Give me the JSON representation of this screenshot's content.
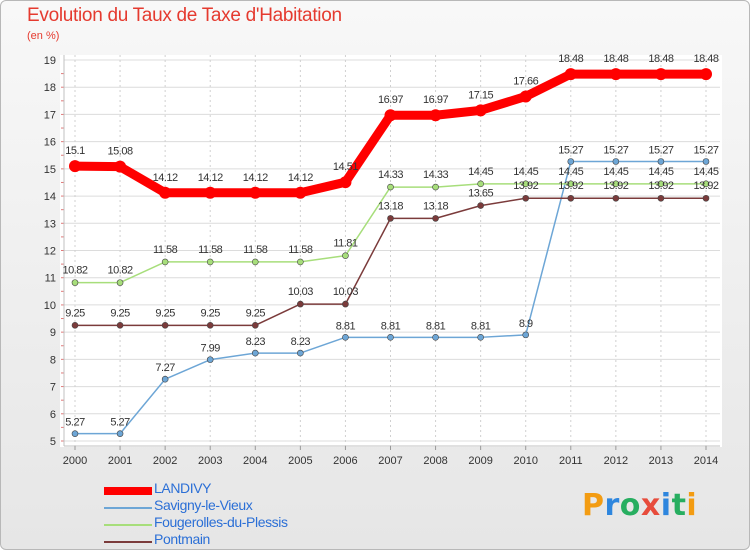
{
  "page": {
    "title": "Evolution du Taux de Taxe d'Habitation",
    "subtitle": "(en %)",
    "logo": {
      "text": "ProXiti",
      "letters": [
        "P",
        "r",
        "o",
        "x",
        "i",
        "t",
        "i"
      ],
      "colors": [
        "#f39c12",
        "#2e86de",
        "#27ae60",
        "#e74c3c",
        "#2e86de",
        "#27ae60",
        "#f39c12"
      ]
    }
  },
  "chart_data": {
    "type": "line",
    "title": "Evolution du Taux de Taxe d'Habitation",
    "ylabel": "(en %)",
    "xlabel": "",
    "x": [
      2000,
      2001,
      2002,
      2003,
      2004,
      2005,
      2006,
      2007,
      2008,
      2009,
      2010,
      2011,
      2012,
      2013,
      2014
    ],
    "ylim": [
      5,
      19
    ],
    "yticks": [
      5,
      6,
      7,
      8,
      9,
      10,
      11,
      12,
      13,
      14,
      15,
      16,
      17,
      18,
      19
    ],
    "grid": "y",
    "legend_position": "bottom-left",
    "series": [
      {
        "name": "LANDIVY",
        "color": "#ff0000",
        "values": [
          15.1,
          15.08,
          14.12,
          14.12,
          14.12,
          14.12,
          14.51,
          16.97,
          16.97,
          17.15,
          17.66,
          18.48,
          18.48,
          18.48,
          18.48
        ]
      },
      {
        "name": "Savigny-le-Vieux",
        "color": "#6da6d6",
        "values": [
          5.27,
          5.27,
          7.27,
          7.99,
          8.23,
          8.23,
          8.81,
          8.81,
          8.81,
          8.81,
          8.9,
          15.27,
          15.27,
          15.27,
          15.27
        ]
      },
      {
        "name": "Fougerolles-du-Plessis",
        "color": "#a7de7b",
        "values": [
          10.82,
          10.82,
          11.58,
          11.58,
          11.58,
          11.58,
          11.81,
          14.33,
          14.33,
          14.45,
          14.45,
          14.45,
          14.45,
          14.45,
          14.45
        ]
      },
      {
        "name": "Pontmain",
        "color": "#7b3b3b",
        "values": [
          9.25,
          9.25,
          9.25,
          9.25,
          9.25,
          10.03,
          10.03,
          13.18,
          13.18,
          13.65,
          13.92,
          13.92,
          13.92,
          13.92,
          13.92
        ]
      }
    ]
  }
}
